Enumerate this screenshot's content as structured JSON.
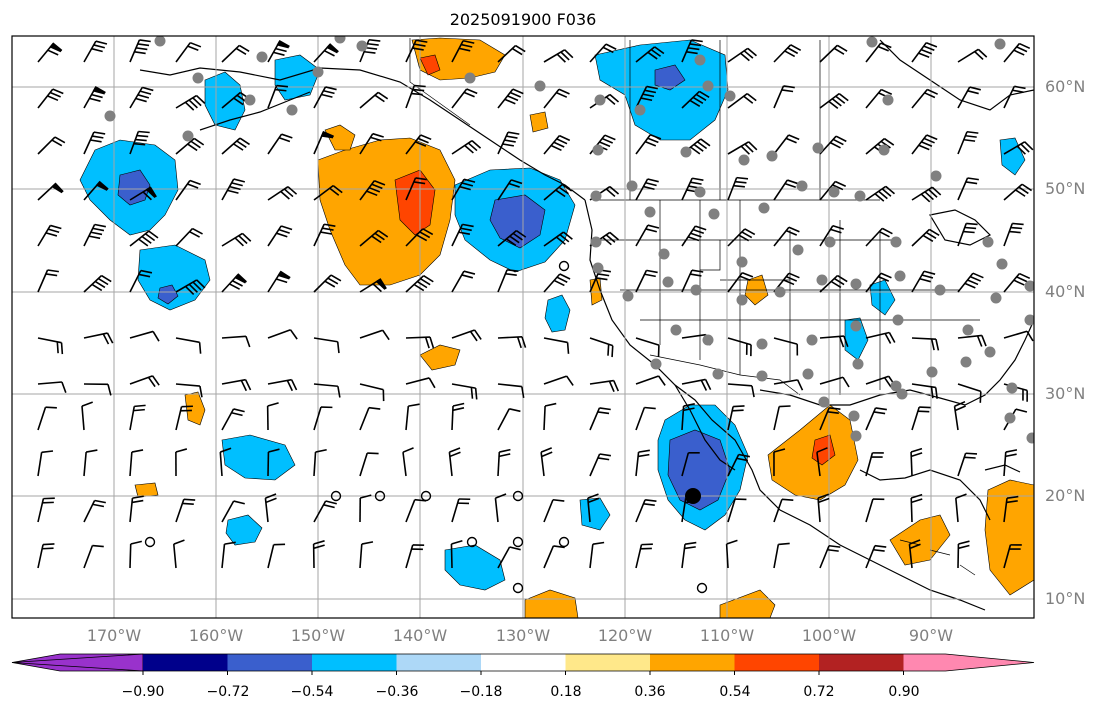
{
  "title": "2025091900 F036",
  "lat_labels": [
    "60°N",
    "50°N",
    "40°N",
    "30°N",
    "20°N",
    "10°N"
  ],
  "lon_labels": [
    "170°W",
    "160°W",
    "150°W",
    "140°W",
    "130°W",
    "120°W",
    "110°W",
    "100°W",
    "90°W"
  ],
  "colorbar": {
    "ticks": [
      "−0.90",
      "−0.72",
      "−0.54",
      "−0.36",
      "−0.18",
      "0.18",
      "0.36",
      "0.54",
      "0.72",
      "0.90"
    ],
    "colors": [
      "#9932cc",
      "#00008b",
      "#3a5fcd",
      "#00bfff",
      "#add8f7",
      "#ffffff",
      "#ffe88a",
      "#ffa500",
      "#ff4500",
      "#b22222",
      "#ff88b0"
    ]
  },
  "map": {
    "projection": "equirectangular",
    "lon_range": [
      -179.7,
      -79.7
    ],
    "lat_range": [
      7.3,
      64.3
    ],
    "gridlines": true,
    "coastline_color": "#000000",
    "observation_dot_color": "#808080"
  }
}
